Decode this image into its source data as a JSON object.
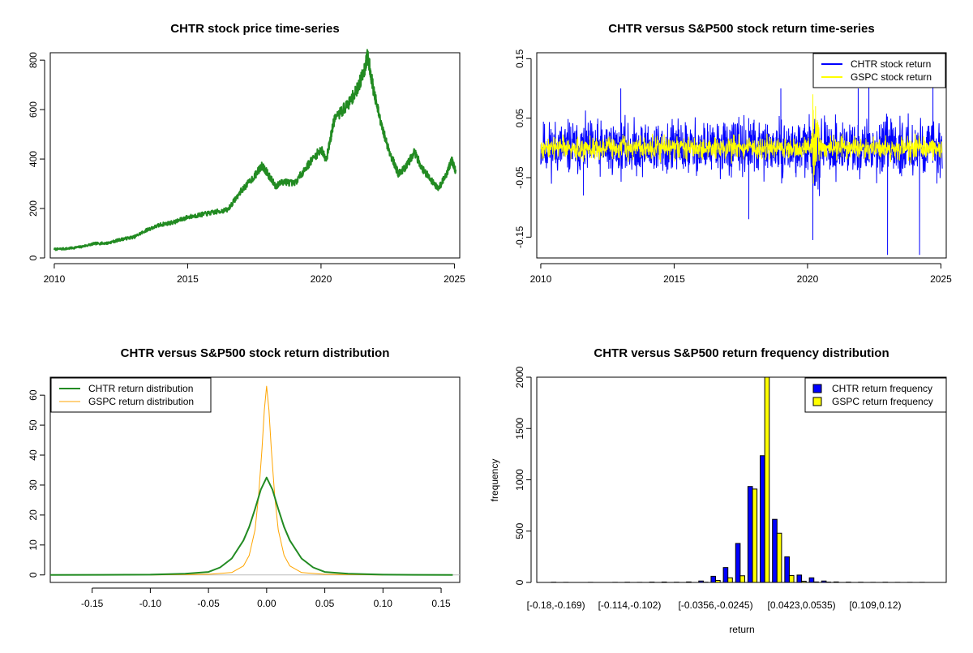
{
  "colors": {
    "chtr_price": "#228B22",
    "chtr_return": "#0000FF",
    "gspc_return": "#FFFF00",
    "chtr_density": "#228B22",
    "gspc_density": "#FFA500",
    "chtr_hist": "#0000FF",
    "gspc_hist": "#FFFF00"
  },
  "chart_data": [
    {
      "id": "price",
      "type": "line",
      "title": "CHTR stock price time-series",
      "xlim": [
        2009.85,
        2025.2
      ],
      "ylim": [
        0,
        830
      ],
      "xticks": [
        2010,
        2015,
        2020,
        2025
      ],
      "xtick_labels": [
        "2010",
        "2015",
        "2020",
        "2025"
      ],
      "yticks": [
        0,
        200,
        400,
        600,
        800
      ],
      "ytick_labels": [
        "0",
        "200",
        "400",
        "600",
        "800"
      ],
      "series": [
        {
          "name": "CHTR price",
          "x": [
            2010.0,
            2010.5,
            2011.0,
            2011.5,
            2012.0,
            2012.5,
            2013.0,
            2013.5,
            2014.0,
            2014.5,
            2015.0,
            2015.5,
            2016.0,
            2016.5,
            2017.0,
            2017.5,
            2017.8,
            2018.0,
            2018.3,
            2018.6,
            2019.0,
            2019.5,
            2020.0,
            2020.2,
            2020.5,
            2021.0,
            2021.3,
            2021.6,
            2021.75,
            2022.0,
            2022.3,
            2022.6,
            2022.9,
            2023.2,
            2023.5,
            2023.8,
            2024.1,
            2024.4,
            2024.7,
            2024.9,
            2025.05
          ],
          "y": [
            35,
            38,
            45,
            58,
            60,
            75,
            85,
            115,
            135,
            145,
            165,
            175,
            185,
            195,
            270,
            330,
            375,
            340,
            290,
            310,
            300,
            375,
            440,
            400,
            560,
            620,
            670,
            750,
            820,
            660,
            520,
            420,
            340,
            370,
            430,
            360,
            320,
            280,
            340,
            395,
            350
          ]
        }
      ]
    },
    {
      "id": "returns",
      "type": "line",
      "title": "CHTR versus S&P500 stock return time-series",
      "xlim": [
        2009.85,
        2025.2
      ],
      "ylim": [
        -0.185,
        0.16
      ],
      "xticks": [
        2010,
        2015,
        2020,
        2025
      ],
      "xtick_labels": [
        "2010",
        "2015",
        "2020",
        "2025"
      ],
      "yticks": [
        -0.15,
        -0.05,
        0.05,
        0.15
      ],
      "ytick_labels": [
        "-0.15",
        "-0.05",
        "0.05",
        "0.15"
      ],
      "legend": [
        "CHTR stock return",
        "GSPC stock return"
      ],
      "legend_position": "top-right",
      "series": [
        {
          "name": "CHTR stock return",
          "summary": "daily returns mostly within ±0.05",
          "spikes": [
            {
              "x": 2011.6,
              "y": -0.08
            },
            {
              "x": 2013.0,
              "y": 0.1
            },
            {
              "x": 2017.8,
              "y": -0.12
            },
            {
              "x": 2019.0,
              "y": 0.1
            },
            {
              "x": 2020.2,
              "y": -0.155
            },
            {
              "x": 2021.9,
              "y": 0.1
            },
            {
              "x": 2022.3,
              "y": 0.12
            },
            {
              "x": 2023.0,
              "y": -0.18
            },
            {
              "x": 2024.2,
              "y": -0.18
            },
            {
              "x": 2024.7,
              "y": 0.11
            },
            {
              "x": 2024.85,
              "y": -0.06
            }
          ]
        },
        {
          "name": "GSPC stock return",
          "summary": "daily returns mostly within ±0.02",
          "spikes": [
            {
              "x": 2020.2,
              "y": 0.09
            },
            {
              "x": 2020.22,
              "y": -0.06
            },
            {
              "x": 2020.3,
              "y": 0.07
            }
          ]
        }
      ]
    },
    {
      "id": "density",
      "type": "line",
      "title": "CHTR versus S&P500 stock return distribution",
      "xlim": [
        -0.186,
        0.166
      ],
      "ylim": [
        -2.5,
        66
      ],
      "xticks": [
        -0.15,
        -0.1,
        -0.05,
        0.0,
        0.05,
        0.1,
        0.15
      ],
      "xtick_labels": [
        "-0.15",
        "-0.10",
        "-0.05",
        "0.00",
        "0.05",
        "0.10",
        "0.15"
      ],
      "yticks": [
        0,
        10,
        20,
        30,
        40,
        50,
        60
      ],
      "ytick_labels": [
        "0",
        "10",
        "20",
        "30",
        "40",
        "50",
        "60"
      ],
      "legend": [
        "CHTR return distribution",
        "GSPC return distribution"
      ],
      "legend_position": "top-left",
      "series": [
        {
          "name": "CHTR return distribution",
          "x": [
            -0.186,
            -0.1,
            -0.07,
            -0.05,
            -0.04,
            -0.03,
            -0.02,
            -0.015,
            -0.01,
            -0.005,
            0.0,
            0.005,
            0.01,
            0.015,
            0.02,
            0.03,
            0.04,
            0.05,
            0.07,
            0.1,
            0.16
          ],
          "y": [
            0,
            0.1,
            0.4,
            1.0,
            2.5,
            5.5,
            11.5,
            16.0,
            22.0,
            28.5,
            32.5,
            28.5,
            22.0,
            16.0,
            11.5,
            5.5,
            2.5,
            1.0,
            0.4,
            0.1,
            0
          ]
        },
        {
          "name": "GSPC return distribution",
          "x": [
            -0.1,
            -0.05,
            -0.03,
            -0.02,
            -0.015,
            -0.01,
            -0.007,
            -0.004,
            -0.002,
            0.0,
            0.002,
            0.004,
            0.007,
            0.01,
            0.015,
            0.02,
            0.03,
            0.05,
            0.1
          ],
          "y": [
            0,
            0.2,
            0.8,
            3.0,
            6.5,
            15.0,
            26.0,
            42.0,
            55.0,
            63.0,
            55.0,
            42.0,
            26.0,
            15.0,
            6.5,
            3.0,
            0.8,
            0.2,
            0
          ]
        }
      ]
    },
    {
      "id": "histogram",
      "type": "bar",
      "title": "CHTR versus S&P500 return frequency distribution",
      "xlabel": "return",
      "ylabel": "frequency",
      "ylim": [
        0,
        2000
      ],
      "yticks": [
        0,
        500,
        1000,
        1500,
        2000
      ],
      "ytick_labels": [
        "0",
        "500",
        "1000",
        "1500",
        "2000"
      ],
      "xtick_labels": [
        "[-0.18,-0.169)",
        "[-0.114,-0.102)",
        "[-0.0356,-0.0245)",
        "[0.0423,0.0535)",
        "[0.109,0.12)"
      ],
      "xtick_label_bins": [
        0,
        6,
        13,
        20,
        26
      ],
      "legend": [
        "CHTR return frequency",
        "GSPC return frequency"
      ],
      "legend_position": "top-right",
      "series": [
        {
          "name": "CHTR return frequency",
          "values": [
            2,
            1,
            0,
            1,
            0,
            1,
            2,
            1,
            3,
            4,
            2,
            5,
            14,
            60,
            145,
            380,
            935,
            1235,
            615,
            250,
            72,
            45,
            14,
            5,
            3,
            2,
            1,
            2,
            1,
            1,
            1,
            0
          ]
        },
        {
          "name": "GSPC return frequency",
          "values": [
            0,
            0,
            0,
            0,
            0,
            0,
            0,
            0,
            0,
            0,
            0,
            0,
            2,
            20,
            45,
            65,
            910,
            2000,
            480,
            68,
            12,
            5,
            3,
            0,
            0,
            0,
            0,
            0,
            0,
            0,
            0,
            0
          ]
        }
      ]
    }
  ]
}
